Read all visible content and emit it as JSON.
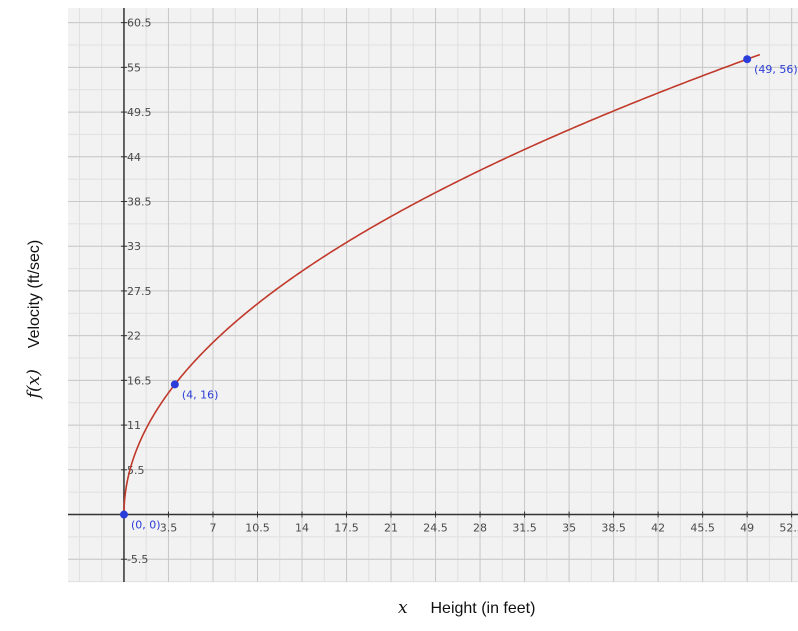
{
  "chart_data": {
    "type": "line",
    "function": "f(x) = 8 * sqrt(x)",
    "xlabel_var": "x",
    "xlabel": "Height (in feet)",
    "ylabel_var": "f(x)",
    "ylabel": "Velocity (ft/sec)",
    "xlim": [
      -4.4,
      53
    ],
    "ylim": [
      -8.3,
      62.3
    ],
    "x_ticks": [
      "3.5",
      "7",
      "10.5",
      "14",
      "17.5",
      "21",
      "24.5",
      "28",
      "31.5",
      "35",
      "38.5",
      "42",
      "45.5",
      "49",
      "52.5"
    ],
    "y_ticks": [
      "-5.5",
      "5.5",
      "11",
      "16.5",
      "22",
      "27.5",
      "33",
      "38.5",
      "44",
      "49.5",
      "55",
      "60.5"
    ],
    "grid": true,
    "curve_color": "#c0392b",
    "point_color": "#2a3dd8",
    "series": [
      {
        "x": [
          0,
          0.25,
          1,
          2,
          4,
          6,
          9,
          12,
          16,
          20,
          25,
          30,
          36,
          42,
          49,
          50
        ],
        "y": [
          0,
          4,
          8,
          11.3,
          16,
          19.6,
          24,
          27.7,
          32,
          35.8,
          40,
          43.8,
          48,
          51.8,
          56,
          56.6
        ]
      }
    ],
    "points": [
      {
        "x": 0,
        "y": 0,
        "label": "(0, 0)"
      },
      {
        "x": 4,
        "y": 16,
        "label": "(4, 16)"
      },
      {
        "x": 49,
        "y": 56,
        "label": "(49, 56)"
      }
    ]
  }
}
